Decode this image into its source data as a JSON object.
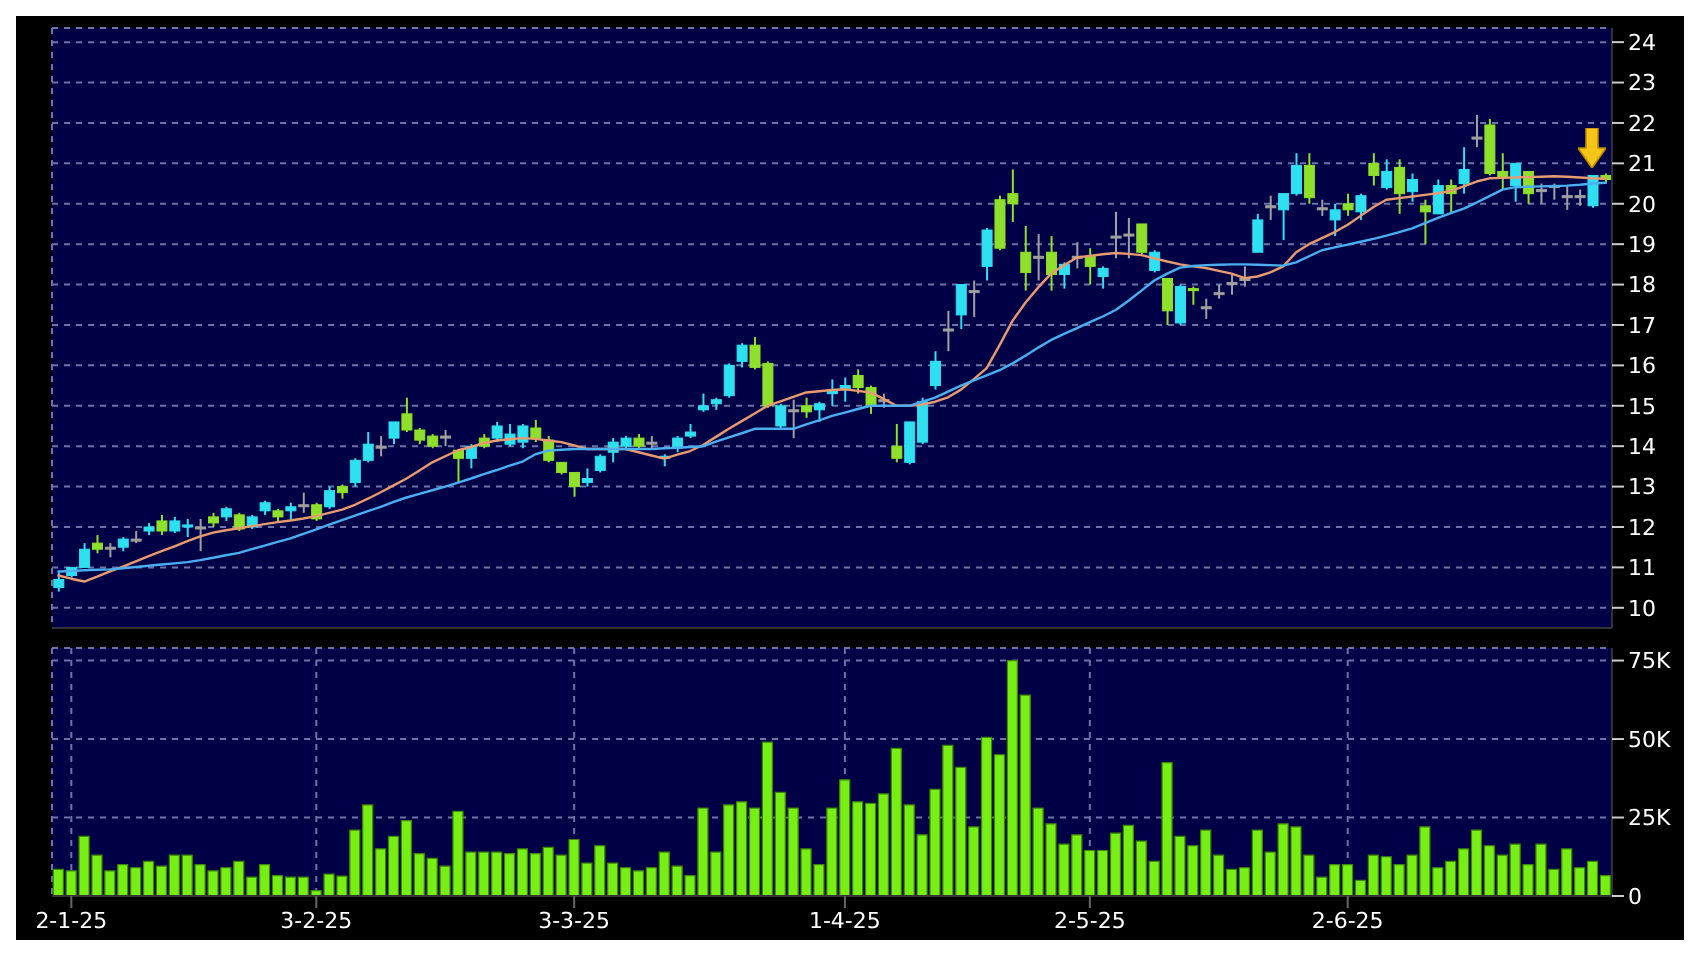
{
  "chart_data": [
    {
      "type": "candlestick",
      "categories": [
        null,
        null,
        null,
        null,
        null,
        null,
        null,
        null,
        null,
        null,
        null,
        null,
        null,
        null,
        null,
        null,
        null,
        null,
        null,
        null,
        null,
        null,
        null,
        null,
        null,
        null,
        null,
        null,
        null,
        null,
        null,
        null,
        null,
        null,
        null,
        null,
        null,
        null,
        null,
        null,
        null,
        null,
        null,
        null,
        null,
        null,
        null,
        null,
        null,
        null,
        null,
        null,
        null,
        null,
        null,
        null,
        null,
        null,
        null,
        null,
        null,
        null,
        null,
        null,
        null,
        null,
        null,
        null,
        null,
        null,
        null,
        null,
        null,
        null,
        null,
        null,
        null,
        null,
        null,
        null,
        null,
        null,
        null,
        null,
        null,
        null,
        null,
        null,
        null,
        null,
        null,
        null,
        null,
        null,
        null,
        null,
        null,
        null,
        null,
        null,
        null,
        null,
        null,
        null,
        null,
        null,
        null,
        null,
        null,
        null,
        null,
        null,
        null,
        null,
        null,
        null,
        null,
        null,
        null,
        null,
        null
      ],
      "ohlc": [
        [
          10.5,
          10.9,
          10.4,
          10.7
        ],
        [
          10.8,
          11.0,
          10.75,
          11.0
        ],
        [
          11.0,
          11.6,
          11.0,
          11.45
        ],
        [
          11.6,
          11.8,
          11.35,
          11.45
        ],
        [
          11.5,
          11.6,
          11.25,
          11.5
        ],
        [
          11.5,
          11.75,
          11.4,
          11.7
        ],
        [
          11.7,
          11.9,
          11.6,
          11.7
        ],
        [
          11.9,
          12.1,
          11.8,
          12.0
        ],
        [
          12.15,
          12.3,
          11.8,
          11.9
        ],
        [
          11.9,
          12.25,
          11.85,
          12.15
        ],
        [
          12.0,
          12.2,
          11.75,
          12.05
        ],
        [
          12.0,
          12.2,
          11.4,
          12.0
        ],
        [
          12.25,
          12.35,
          12.0,
          12.1
        ],
        [
          12.25,
          12.5,
          12.15,
          12.45
        ],
        [
          12.3,
          12.35,
          11.9,
          11.95
        ],
        [
          12.0,
          12.3,
          11.95,
          12.25
        ],
        [
          12.4,
          12.65,
          12.3,
          12.6
        ],
        [
          12.4,
          12.45,
          12.1,
          12.25
        ],
        [
          12.4,
          12.6,
          12.15,
          12.5
        ],
        [
          12.55,
          12.85,
          12.35,
          12.55
        ],
        [
          12.55,
          12.6,
          12.15,
          12.2
        ],
        [
          12.5,
          13.0,
          12.45,
          12.9
        ],
        [
          13.0,
          13.05,
          12.7,
          12.85
        ],
        [
          13.1,
          13.7,
          13.0,
          13.65
        ],
        [
          13.65,
          14.35,
          13.6,
          14.05
        ],
        [
          14.0,
          14.25,
          13.75,
          14.0
        ],
        [
          14.2,
          14.6,
          14.05,
          14.6
        ],
        [
          14.8,
          15.2,
          14.35,
          14.4
        ],
        [
          14.4,
          14.45,
          14.05,
          14.15
        ],
        [
          14.25,
          14.3,
          13.95,
          14.0
        ],
        [
          14.25,
          14.4,
          14.0,
          14.25
        ],
        [
          13.9,
          13.9,
          13.1,
          13.7
        ],
        [
          13.7,
          14.05,
          13.45,
          14.0
        ],
        [
          14.2,
          14.3,
          13.95,
          14.0
        ],
        [
          14.2,
          14.6,
          14.1,
          14.5
        ],
        [
          14.05,
          14.55,
          14.0,
          14.3
        ],
        [
          14.1,
          14.55,
          13.95,
          14.5
        ],
        [
          14.45,
          14.65,
          14.1,
          14.2
        ],
        [
          14.15,
          14.25,
          13.6,
          13.65
        ],
        [
          13.6,
          13.6,
          13.3,
          13.35
        ],
        [
          13.35,
          13.35,
          12.75,
          13.0
        ],
        [
          13.1,
          13.45,
          13.0,
          13.2
        ],
        [
          13.4,
          13.8,
          13.35,
          13.75
        ],
        [
          13.85,
          14.2,
          13.6,
          14.1
        ],
        [
          14.0,
          14.25,
          13.9,
          14.2
        ],
        [
          14.2,
          14.3,
          13.95,
          14.0
        ],
        [
          14.1,
          14.25,
          13.95,
          14.1
        ],
        [
          13.7,
          13.8,
          13.5,
          13.75
        ],
        [
          13.95,
          14.25,
          13.85,
          14.2
        ],
        [
          14.25,
          14.55,
          14.2,
          14.35
        ],
        [
          14.9,
          15.3,
          14.85,
          15.0
        ],
        [
          15.05,
          15.2,
          14.9,
          15.15
        ],
        [
          15.25,
          16.05,
          15.2,
          16.0
        ],
        [
          16.1,
          16.55,
          15.95,
          16.5
        ],
        [
          16.5,
          16.7,
          15.9,
          15.95
        ],
        [
          16.05,
          16.1,
          14.95,
          15.0
        ],
        [
          14.5,
          15.05,
          14.45,
          15.0
        ],
        [
          14.9,
          15.15,
          14.2,
          14.9
        ],
        [
          15.0,
          15.2,
          14.7,
          14.85
        ],
        [
          14.9,
          15.1,
          14.6,
          15.05
        ],
        [
          15.3,
          15.65,
          15.0,
          15.4
        ],
        [
          15.4,
          15.7,
          15.1,
          15.5
        ],
        [
          15.75,
          15.9,
          15.3,
          15.45
        ],
        [
          15.45,
          15.5,
          14.8,
          15.0
        ],
        [
          15.15,
          15.3,
          14.95,
          15.15
        ],
        [
          14.0,
          14.55,
          13.6,
          13.7
        ],
        [
          13.6,
          14.6,
          13.55,
          14.6
        ],
        [
          14.1,
          15.2,
          14.05,
          15.1
        ],
        [
          15.5,
          16.35,
          15.4,
          16.1
        ],
        [
          16.9,
          17.35,
          16.35,
          16.9
        ],
        [
          17.25,
          18.0,
          16.9,
          18.0
        ],
        [
          17.85,
          18.1,
          17.2,
          17.85
        ],
        [
          18.45,
          19.4,
          18.1,
          19.35
        ],
        [
          20.1,
          20.2,
          18.85,
          18.9
        ],
        [
          20.25,
          20.85,
          19.55,
          20.0
        ],
        [
          18.8,
          19.45,
          17.85,
          18.3
        ],
        [
          18.7,
          19.25,
          18.1,
          18.7
        ],
        [
          18.8,
          19.2,
          17.85,
          18.25
        ],
        [
          18.25,
          18.55,
          17.9,
          18.5
        ],
        [
          18.7,
          19.05,
          18.4,
          18.7
        ],
        [
          18.7,
          18.9,
          18.0,
          18.45
        ],
        [
          18.2,
          18.45,
          17.9,
          18.4
        ],
        [
          19.2,
          19.8,
          18.65,
          19.2
        ],
        [
          19.25,
          19.65,
          18.65,
          19.25
        ],
        [
          19.5,
          19.5,
          18.75,
          18.8
        ],
        [
          18.35,
          18.85,
          18.3,
          18.8
        ],
        [
          18.15,
          18.15,
          17.0,
          17.35
        ],
        [
          17.05,
          18.0,
          17.0,
          17.95
        ],
        [
          17.9,
          17.95,
          17.5,
          17.85
        ],
        [
          17.45,
          17.65,
          17.15,
          17.45
        ],
        [
          17.8,
          18.0,
          17.65,
          17.8
        ],
        [
          18.05,
          18.25,
          17.75,
          18.05
        ],
        [
          18.15,
          18.45,
          17.95,
          18.15
        ],
        [
          18.8,
          19.75,
          18.8,
          19.6
        ],
        [
          19.95,
          20.2,
          19.6,
          19.95
        ],
        [
          19.85,
          20.25,
          19.1,
          20.25
        ],
        [
          20.25,
          21.25,
          20.2,
          20.95
        ],
        [
          20.95,
          21.25,
          20.0,
          20.15
        ],
        [
          19.9,
          20.1,
          19.7,
          19.9
        ],
        [
          19.6,
          20.0,
          19.2,
          19.85
        ],
        [
          20.0,
          20.25,
          19.7,
          19.85
        ],
        [
          19.8,
          20.25,
          19.6,
          20.2
        ],
        [
          21.0,
          21.25,
          20.45,
          20.7
        ],
        [
          20.4,
          21.1,
          20.35,
          20.8
        ],
        [
          20.9,
          21.1,
          19.75,
          20.25
        ],
        [
          20.3,
          20.75,
          20.05,
          20.6
        ],
        [
          19.95,
          20.1,
          19.0,
          19.8
        ],
        [
          19.75,
          20.6,
          19.75,
          20.45
        ],
        [
          20.45,
          20.6,
          19.75,
          20.25
        ],
        [
          20.5,
          21.4,
          20.25,
          20.85
        ],
        [
          21.65,
          22.2,
          21.4,
          21.65
        ],
        [
          21.95,
          22.1,
          20.7,
          20.75
        ],
        [
          20.8,
          21.25,
          20.35,
          20.65
        ],
        [
          20.45,
          21.0,
          20.05,
          21.0
        ],
        [
          20.8,
          20.8,
          20.0,
          20.25
        ],
        [
          20.35,
          20.5,
          20.0,
          20.35
        ],
        [
          20.45,
          20.5,
          20.1,
          20.45
        ],
        [
          20.2,
          20.45,
          19.85,
          20.2
        ],
        [
          20.2,
          20.35,
          19.95,
          20.2
        ],
        [
          19.95,
          20.7,
          19.9,
          20.7
        ],
        [
          20.7,
          20.75,
          20.5,
          20.6
        ]
      ],
      "colors": [
        "#2ee0f0",
        "#2ee0f0",
        "#2ee0f0",
        "#8ee02a",
        "#a0a0a0",
        "#2ee0f0",
        "#a0a0a0",
        "#2ee0f0",
        "#8ee02a",
        "#2ee0f0",
        "#2ee0f0",
        "#a0a0a0",
        "#8ee02a",
        "#2ee0f0",
        "#8ee02a",
        "#2ee0f0",
        "#2ee0f0",
        "#8ee02a",
        "#2ee0f0",
        "#a0a0a0",
        "#8ee02a",
        "#2ee0f0",
        "#8ee02a",
        "#2ee0f0",
        "#2ee0f0",
        "#a0a0a0",
        "#2ee0f0",
        "#8ee02a",
        "#8ee02a",
        "#8ee02a",
        "#a0a0a0",
        "#8ee02a",
        "#2ee0f0",
        "#8ee02a",
        "#2ee0f0",
        "#2ee0f0",
        "#2ee0f0",
        "#8ee02a",
        "#8ee02a",
        "#8ee02a",
        "#8ee02a",
        "#2ee0f0",
        "#2ee0f0",
        "#2ee0f0",
        "#2ee0f0",
        "#8ee02a",
        "#a0a0a0",
        "#2ee0f0",
        "#2ee0f0",
        "#2ee0f0",
        "#2ee0f0",
        "#2ee0f0",
        "#2ee0f0",
        "#2ee0f0",
        "#8ee02a",
        "#8ee02a",
        "#2ee0f0",
        "#a0a0a0",
        "#8ee02a",
        "#2ee0f0",
        "#2ee0f0",
        "#2ee0f0",
        "#8ee02a",
        "#8ee02a",
        "#a0a0a0",
        "#8ee02a",
        "#2ee0f0",
        "#2ee0f0",
        "#2ee0f0",
        "#a0a0a0",
        "#2ee0f0",
        "#a0a0a0",
        "#2ee0f0",
        "#8ee02a",
        "#8ee02a",
        "#8ee02a",
        "#a0a0a0",
        "#8ee02a",
        "#2ee0f0",
        "#a0a0a0",
        "#8ee02a",
        "#2ee0f0",
        "#a0a0a0",
        "#a0a0a0",
        "#8ee02a",
        "#2ee0f0",
        "#8ee02a",
        "#2ee0f0",
        "#8ee02a",
        "#a0a0a0",
        "#a0a0a0",
        "#a0a0a0",
        "#a0a0a0",
        "#2ee0f0",
        "#a0a0a0",
        "#2ee0f0",
        "#2ee0f0",
        "#8ee02a",
        "#a0a0a0",
        "#2ee0f0",
        "#8ee02a",
        "#2ee0f0",
        "#8ee02a",
        "#2ee0f0",
        "#8ee02a",
        "#2ee0f0",
        "#8ee02a",
        "#2ee0f0",
        "#8ee02a",
        "#2ee0f0",
        "#a0a0a0",
        "#8ee02a",
        "#8ee02a",
        "#2ee0f0",
        "#8ee02a",
        "#a0a0a0",
        "#a0a0a0",
        "#a0a0a0",
        "#a0a0a0",
        "#2ee0f0",
        "#8ee02a"
      ],
      "series": [
        {
          "type": "line",
          "color": "#e89a70",
          "values": [
            10.8,
            10.72,
            10.65,
            10.77,
            10.9,
            11.02,
            11.15,
            11.28,
            11.4,
            11.52,
            11.65,
            11.77,
            11.86,
            11.92,
            11.97,
            12.02,
            12.07,
            12.12,
            12.16,
            12.21,
            12.27,
            12.35,
            12.43,
            12.55,
            12.7,
            12.86,
            13.03,
            13.2,
            13.4,
            13.6,
            13.75,
            13.9,
            13.98,
            14.08,
            14.14,
            14.17,
            14.2,
            14.18,
            14.14,
            14.1,
            14.02,
            13.93,
            13.93,
            13.93,
            13.93,
            13.85,
            13.77,
            13.69,
            13.79,
            13.88,
            14.03,
            14.23,
            14.43,
            14.62,
            14.81,
            15.0,
            15.11,
            15.22,
            15.33,
            15.36,
            15.39,
            15.41,
            15.37,
            15.33,
            15.17,
            15.0,
            15.0,
            15.03,
            15.1,
            15.21,
            15.4,
            15.66,
            15.93,
            16.5,
            17.1,
            17.55,
            17.93,
            18.27,
            18.48,
            18.67,
            18.71,
            18.75,
            18.78,
            18.76,
            18.73,
            18.65,
            18.57,
            18.5,
            18.45,
            18.41,
            18.34,
            18.27,
            18.16,
            18.2,
            18.3,
            18.45,
            18.8,
            19.0,
            19.15,
            19.3,
            19.48,
            19.7,
            19.92,
            20.1,
            20.14,
            20.18,
            20.22,
            20.26,
            20.32,
            20.43,
            20.55,
            20.63,
            20.64,
            20.65,
            20.66,
            20.67,
            20.68,
            20.67,
            20.65,
            20.63,
            20.62
          ]
        },
        {
          "type": "line",
          "color": "#4aaef0",
          "values": [
            10.9,
            10.91,
            10.93,
            10.94,
            10.95,
            10.98,
            11.01,
            11.04,
            11.07,
            11.1,
            11.13,
            11.18,
            11.24,
            11.3,
            11.36,
            11.45,
            11.54,
            11.63,
            11.72,
            11.83,
            11.94,
            12.06,
            12.17,
            12.28,
            12.39,
            12.5,
            12.62,
            12.73,
            12.82,
            12.91,
            13.0,
            13.1,
            13.2,
            13.31,
            13.41,
            13.52,
            13.62,
            13.8,
            13.89,
            13.91,
            13.93,
            13.93,
            13.93,
            13.93,
            13.93,
            13.93,
            13.93,
            13.95,
            13.96,
            13.98,
            14.0,
            14.11,
            14.22,
            14.32,
            14.43,
            14.43,
            14.43,
            14.43,
            14.54,
            14.64,
            14.75,
            14.83,
            14.92,
            15.0,
            15.0,
            15.0,
            15.0,
            15.1,
            15.2,
            15.35,
            15.5,
            15.63,
            15.75,
            15.88,
            16.05,
            16.24,
            16.44,
            16.63,
            16.78,
            16.92,
            17.07,
            17.21,
            17.37,
            17.6,
            17.85,
            18.1,
            18.27,
            18.42,
            18.46,
            18.48,
            18.49,
            18.5,
            18.5,
            18.49,
            18.48,
            18.47,
            18.55,
            18.7,
            18.85,
            18.92,
            18.99,
            19.06,
            19.13,
            19.21,
            19.3,
            19.39,
            19.52,
            19.65,
            19.77,
            19.88,
            20.03,
            20.19,
            20.35,
            20.41,
            20.42,
            20.43,
            20.44,
            20.45,
            20.47,
            20.5,
            20.52
          ]
        }
      ],
      "ylim": [
        9.5,
        24.35
      ],
      "yticks": [
        10,
        11,
        12,
        13,
        14,
        15,
        16,
        17,
        18,
        19,
        20,
        21,
        22,
        23,
        24
      ],
      "grid": true,
      "tick_labels": "y"
    },
    {
      "type": "bar",
      "categories": [
        null,
        "2-1-25",
        null,
        null,
        null,
        null,
        null,
        null,
        null,
        null,
        null,
        null,
        null,
        null,
        null,
        null,
        null,
        null,
        null,
        null,
        "3-2-25",
        null,
        null,
        null,
        null,
        null,
        null,
        null,
        null,
        null,
        null,
        null,
        null,
        null,
        null,
        null,
        null,
        null,
        null,
        null,
        "3-3-25",
        null,
        null,
        null,
        null,
        null,
        null,
        null,
        null,
        null,
        null,
        null,
        null,
        null,
        null,
        null,
        null,
        null,
        null,
        null,
        null,
        "1-4-25",
        null,
        null,
        null,
        null,
        null,
        null,
        null,
        null,
        null,
        null,
        null,
        null,
        null,
        null,
        null,
        null,
        null,
        null,
        "2-5-25",
        null,
        null,
        null,
        null,
        null,
        null,
        null,
        null,
        null,
        null,
        null,
        null,
        null,
        null,
        null,
        null,
        null,
        null,
        null,
        "2-6-25",
        null,
        null,
        null,
        null,
        null,
        null,
        null,
        null,
        null,
        null,
        null,
        null,
        null,
        null,
        null,
        null,
        null,
        null,
        null,
        null
      ],
      "values": [
        8500,
        8000,
        19000,
        13000,
        8000,
        10000,
        9000,
        11000,
        9500,
        13000,
        13000,
        10000,
        8000,
        9000,
        11000,
        6000,
        10000,
        6500,
        6000,
        6000,
        1700,
        7000,
        6300,
        21000,
        29000,
        15000,
        19000,
        24000,
        13500,
        12000,
        9500,
        27000,
        14000,
        14000,
        14000,
        13500,
        15000,
        13500,
        15500,
        13000,
        18000,
        10500,
        16000,
        10500,
        9000,
        8000,
        9000,
        14000,
        9500,
        6500,
        28000,
        14000,
        29000,
        30000,
        28000,
        49000,
        33000,
        28000,
        15000,
        10000,
        28000,
        37000,
        30000,
        29500,
        32500,
        47000,
        29000,
        19500,
        34000,
        48000,
        41000,
        22000,
        50500,
        45000,
        75000,
        64000,
        28000,
        23000,
        16500,
        19500,
        14500,
        14500,
        20000,
        22500,
        17500,
        11000,
        42500,
        19000,
        16000,
        21000,
        13000,
        8500,
        9000,
        21000,
        14000,
        23000,
        22000,
        13000,
        6000,
        10000,
        10000,
        5000,
        13000,
        12500,
        10000,
        13000,
        22000,
        9000,
        11000,
        15000,
        21000,
        16000,
        13000,
        16500,
        10000,
        16500,
        8500,
        15000,
        9000,
        11000,
        6500
      ],
      "color": "#77ee14",
      "ylim": [
        0,
        79000
      ],
      "yticks": [
        0,
        {
          "value": 25000,
          "label": "25K"
        },
        {
          "value": 50000,
          "label": "50K"
        },
        {
          "value": 75000,
          "label": "75K"
        }
      ],
      "grid": true
    }
  ]
}
